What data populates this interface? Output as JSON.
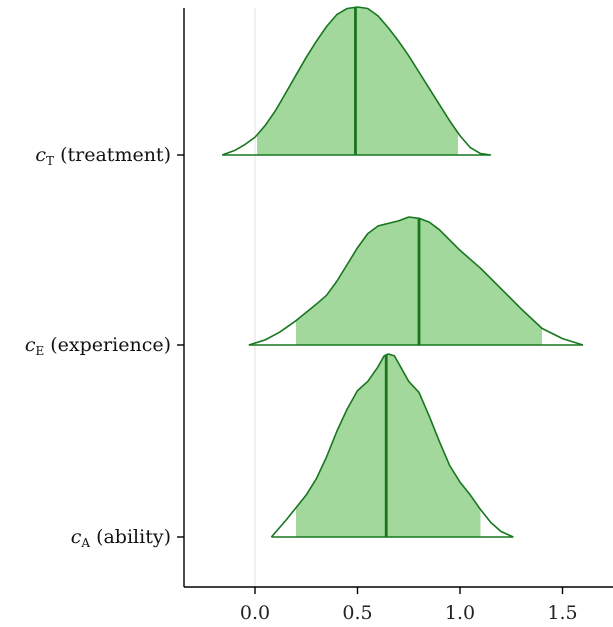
{
  "chart_data": {
    "type": "area",
    "subtype": "posterior-density-ridges",
    "xlim": [
      -0.35,
      1.75
    ],
    "x_ticks": [
      0.0,
      0.5,
      1.0,
      1.5
    ],
    "x_tick_labels": [
      "0.0",
      "0.5",
      "1.0",
      "1.5"
    ],
    "reference_line_x": 0.0,
    "grid": false,
    "colors": {
      "fill": "#a2d89b",
      "outline": "#17761f",
      "median_line": "#17761f",
      "axis": "#000000",
      "reference_line": "#e5e5e5"
    },
    "series": [
      {
        "var": "c",
        "sub": "T",
        "desc": "(treatment)",
        "median": 0.49,
        "interval": [
          0.01,
          0.99
        ],
        "density": [
          [
            -0.16,
            0.0
          ],
          [
            -0.1,
            0.03
          ],
          [
            -0.05,
            0.07
          ],
          [
            0.0,
            0.12
          ],
          [
            0.05,
            0.2
          ],
          [
            0.1,
            0.3
          ],
          [
            0.15,
            0.42
          ],
          [
            0.2,
            0.54
          ],
          [
            0.25,
            0.66
          ],
          [
            0.3,
            0.77
          ],
          [
            0.35,
            0.87
          ],
          [
            0.4,
            0.95
          ],
          [
            0.45,
            0.99
          ],
          [
            0.5,
            1.0
          ],
          [
            0.55,
            0.99
          ],
          [
            0.6,
            0.94
          ],
          [
            0.65,
            0.86
          ],
          [
            0.7,
            0.77
          ],
          [
            0.75,
            0.67
          ],
          [
            0.8,
            0.56
          ],
          [
            0.85,
            0.45
          ],
          [
            0.9,
            0.34
          ],
          [
            0.95,
            0.23
          ],
          [
            1.0,
            0.13
          ],
          [
            1.05,
            0.05
          ],
          [
            1.1,
            0.01
          ],
          [
            1.15,
            0.0
          ]
        ]
      },
      {
        "var": "c",
        "sub": "E",
        "desc": "(experience)",
        "median": 0.8,
        "interval": [
          0.2,
          1.4
        ],
        "density": [
          [
            -0.03,
            0.0
          ],
          [
            0.05,
            0.04
          ],
          [
            0.12,
            0.1
          ],
          [
            0.2,
            0.19
          ],
          [
            0.3,
            0.32
          ],
          [
            0.35,
            0.39
          ],
          [
            0.4,
            0.5
          ],
          [
            0.45,
            0.63
          ],
          [
            0.5,
            0.76
          ],
          [
            0.55,
            0.87
          ],
          [
            0.6,
            0.93
          ],
          [
            0.65,
            0.95
          ],
          [
            0.7,
            0.97
          ],
          [
            0.75,
            1.0
          ],
          [
            0.8,
            0.99
          ],
          [
            0.85,
            0.96
          ],
          [
            0.9,
            0.9
          ],
          [
            0.95,
            0.82
          ],
          [
            1.0,
            0.74
          ],
          [
            1.1,
            0.6
          ],
          [
            1.2,
            0.44
          ],
          [
            1.3,
            0.28
          ],
          [
            1.4,
            0.13
          ],
          [
            1.5,
            0.05
          ],
          [
            1.6,
            0.0
          ]
        ]
      },
      {
        "var": "c",
        "sub": "A",
        "desc": "(ability)",
        "median": 0.64,
        "interval": [
          0.2,
          1.1
        ],
        "density": [
          [
            0.08,
            0.0
          ],
          [
            0.15,
            0.09
          ],
          [
            0.2,
            0.16
          ],
          [
            0.25,
            0.23
          ],
          [
            0.3,
            0.32
          ],
          [
            0.35,
            0.44
          ],
          [
            0.4,
            0.58
          ],
          [
            0.45,
            0.7
          ],
          [
            0.5,
            0.8
          ],
          [
            0.55,
            0.85
          ],
          [
            0.6,
            0.93
          ],
          [
            0.63,
            0.99
          ],
          [
            0.65,
            1.0
          ],
          [
            0.68,
            0.99
          ],
          [
            0.7,
            0.95
          ],
          [
            0.75,
            0.85
          ],
          [
            0.8,
            0.79
          ],
          [
            0.85,
            0.66
          ],
          [
            0.9,
            0.52
          ],
          [
            0.95,
            0.39
          ],
          [
            1.0,
            0.3
          ],
          [
            1.05,
            0.23
          ],
          [
            1.1,
            0.15
          ],
          [
            1.15,
            0.08
          ],
          [
            1.2,
            0.03
          ],
          [
            1.26,
            0.0
          ]
        ]
      }
    ]
  }
}
